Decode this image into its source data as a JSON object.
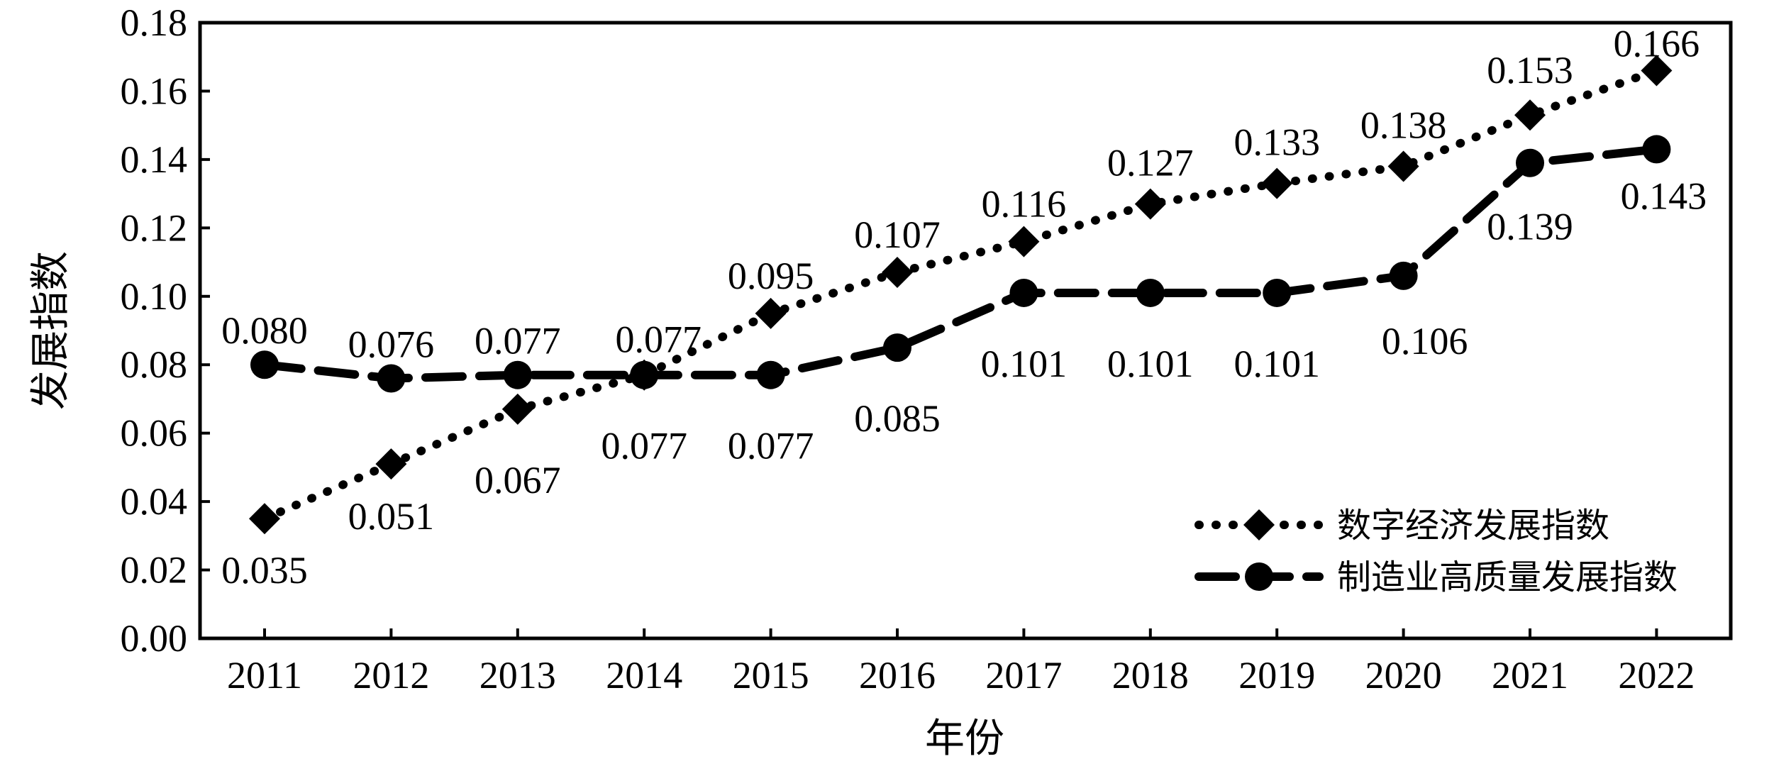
{
  "chart_data": {
    "type": "line",
    "title": "",
    "xlabel": "年份",
    "ylabel": "发展指数",
    "categories": [
      "2011",
      "2012",
      "2013",
      "2014",
      "2015",
      "2016",
      "2017",
      "2018",
      "2019",
      "2020",
      "2021",
      "2022"
    ],
    "ylim": [
      0,
      0.18
    ],
    "yticks": [
      "0.00",
      "0.02",
      "0.04",
      "0.06",
      "0.08",
      "0.10",
      "0.12",
      "0.14",
      "0.16",
      "0.18"
    ],
    "grid": false,
    "legend_position": "bottom-right",
    "series": [
      {
        "name": "数字经济发展指数",
        "marker": "diamond",
        "line_style": "dotted",
        "values": [
          0.035,
          0.051,
          0.067,
          0.077,
          0.095,
          0.107,
          0.116,
          0.127,
          0.133,
          0.138,
          0.153,
          0.166
        ],
        "labels": [
          "0.035",
          "0.051",
          "0.067",
          "0.077",
          "0.095",
          "0.107",
          "0.116",
          "0.127",
          "0.133",
          "0.138",
          "0.153",
          "0.166"
        ]
      },
      {
        "name": "制造业高质量发展指数",
        "marker": "circle",
        "line_style": "dashed",
        "values": [
          0.08,
          0.076,
          0.077,
          0.077,
          0.077,
          0.085,
          0.101,
          0.101,
          0.101,
          0.106,
          0.139,
          0.143
        ],
        "labels": [
          "0.080",
          "0.076",
          "0.077",
          "0.077",
          "0.077",
          "0.085",
          "0.101",
          "0.101",
          "0.101",
          "0.106",
          "0.139",
          "0.143"
        ]
      }
    ],
    "colors": {
      "line": "#000000"
    }
  }
}
